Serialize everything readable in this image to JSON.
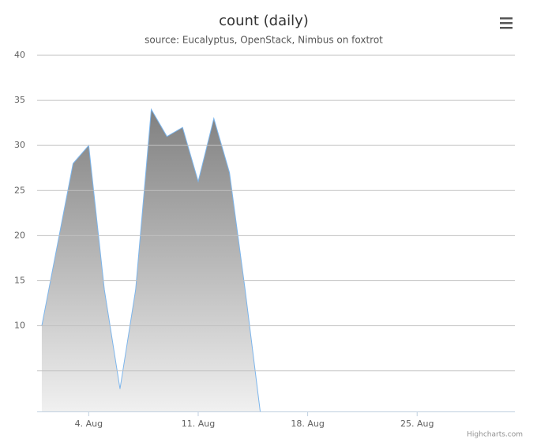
{
  "chart_data": {
    "type": "area",
    "title": "count (daily)",
    "subtitle": "source: Eucalyptus, OpenStack, Nimbus on foxtrot",
    "credits": "Highcharts.com",
    "x": [
      1,
      2,
      3,
      4,
      5,
      6,
      7,
      8,
      9,
      10,
      11,
      12,
      13,
      14,
      15
    ],
    "series": [
      {
        "name": "count",
        "color": "#7cb5ec",
        "values": [
          10,
          19,
          28,
          30,
          14,
          3,
          14,
          34,
          31,
          32,
          26,
          33,
          27,
          14,
          0
        ]
      }
    ],
    "xlim": [
      0.7,
      31.25
    ],
    "xticks": [
      {
        "value": 4,
        "label": "4. Aug"
      },
      {
        "value": 11,
        "label": "11. Aug"
      },
      {
        "value": 18,
        "label": "18. Aug"
      },
      {
        "value": 25,
        "label": "25. Aug"
      }
    ],
    "ylim": [
      0.5,
      40
    ],
    "yticks": [
      10,
      15,
      20,
      25,
      30,
      35,
      40
    ],
    "unlabeled_ygrid": [
      5
    ],
    "grid": true
  }
}
